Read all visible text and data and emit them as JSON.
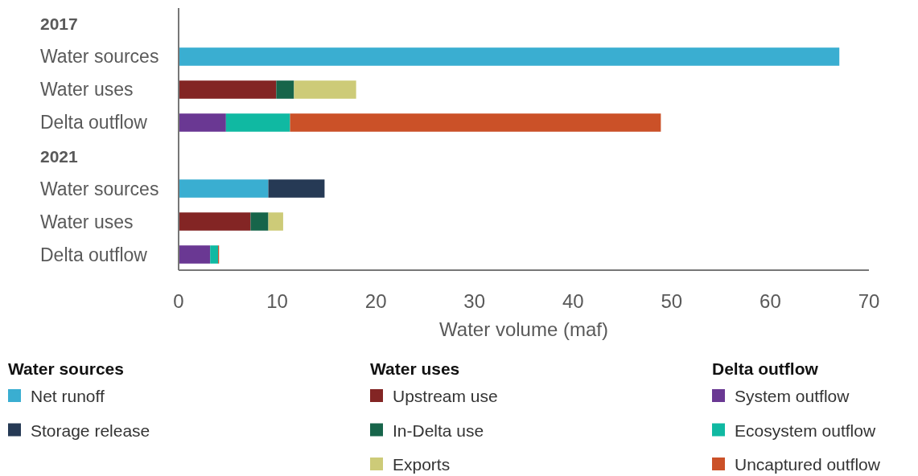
{
  "chart_data": {
    "type": "bar",
    "orientation": "horizontal",
    "stacked": true,
    "xlabel": "Water volume (maf)",
    "categories": [
      "2017",
      "Water sources",
      "Water uses",
      "Delta outflow",
      "2021",
      "Water sources",
      "Water uses",
      "Delta outflow"
    ],
    "series": [
      {
        "name": "Net runoff",
        "color": "#3aaed1",
        "values": [
          null,
          67.0,
          null,
          null,
          null,
          9.1,
          null,
          null
        ]
      },
      {
        "name": "Storage release",
        "color": "#263a55",
        "values": [
          null,
          null,
          null,
          null,
          null,
          5.7,
          null,
          null
        ]
      },
      {
        "name": "Upstream use",
        "color": "#832524",
        "values": [
          null,
          null,
          9.9,
          null,
          null,
          null,
          7.3,
          null
        ]
      },
      {
        "name": "In-Delta use",
        "color": "#17654a",
        "values": [
          null,
          null,
          1.8,
          null,
          null,
          null,
          1.8,
          null
        ]
      },
      {
        "name": "Exports",
        "color": "#cdcb78",
        "values": [
          null,
          null,
          6.3,
          null,
          null,
          null,
          1.5,
          null
        ]
      },
      {
        "name": "System outflow",
        "color": "#6a3893",
        "values": [
          null,
          null,
          null,
          4.8,
          null,
          null,
          null,
          3.2
        ]
      },
      {
        "name": "Ecosystem outflow",
        "color": "#10b9a2",
        "values": [
          null,
          null,
          null,
          6.5,
          null,
          null,
          null,
          0.8
        ]
      },
      {
        "name": "Uncaptured outflow",
        "color": "#cb5128",
        "values": [
          null,
          null,
          null,
          37.6,
          null,
          null,
          null,
          0.1
        ]
      }
    ],
    "xlim": [
      0,
      70
    ],
    "xticks": [
      0,
      10,
      20,
      30,
      40,
      50,
      60,
      70
    ],
    "grid": false,
    "legend": "bottom",
    "annotations": [
      "Water sources",
      "Water uses",
      "Delta outflow"
    ]
  }
}
